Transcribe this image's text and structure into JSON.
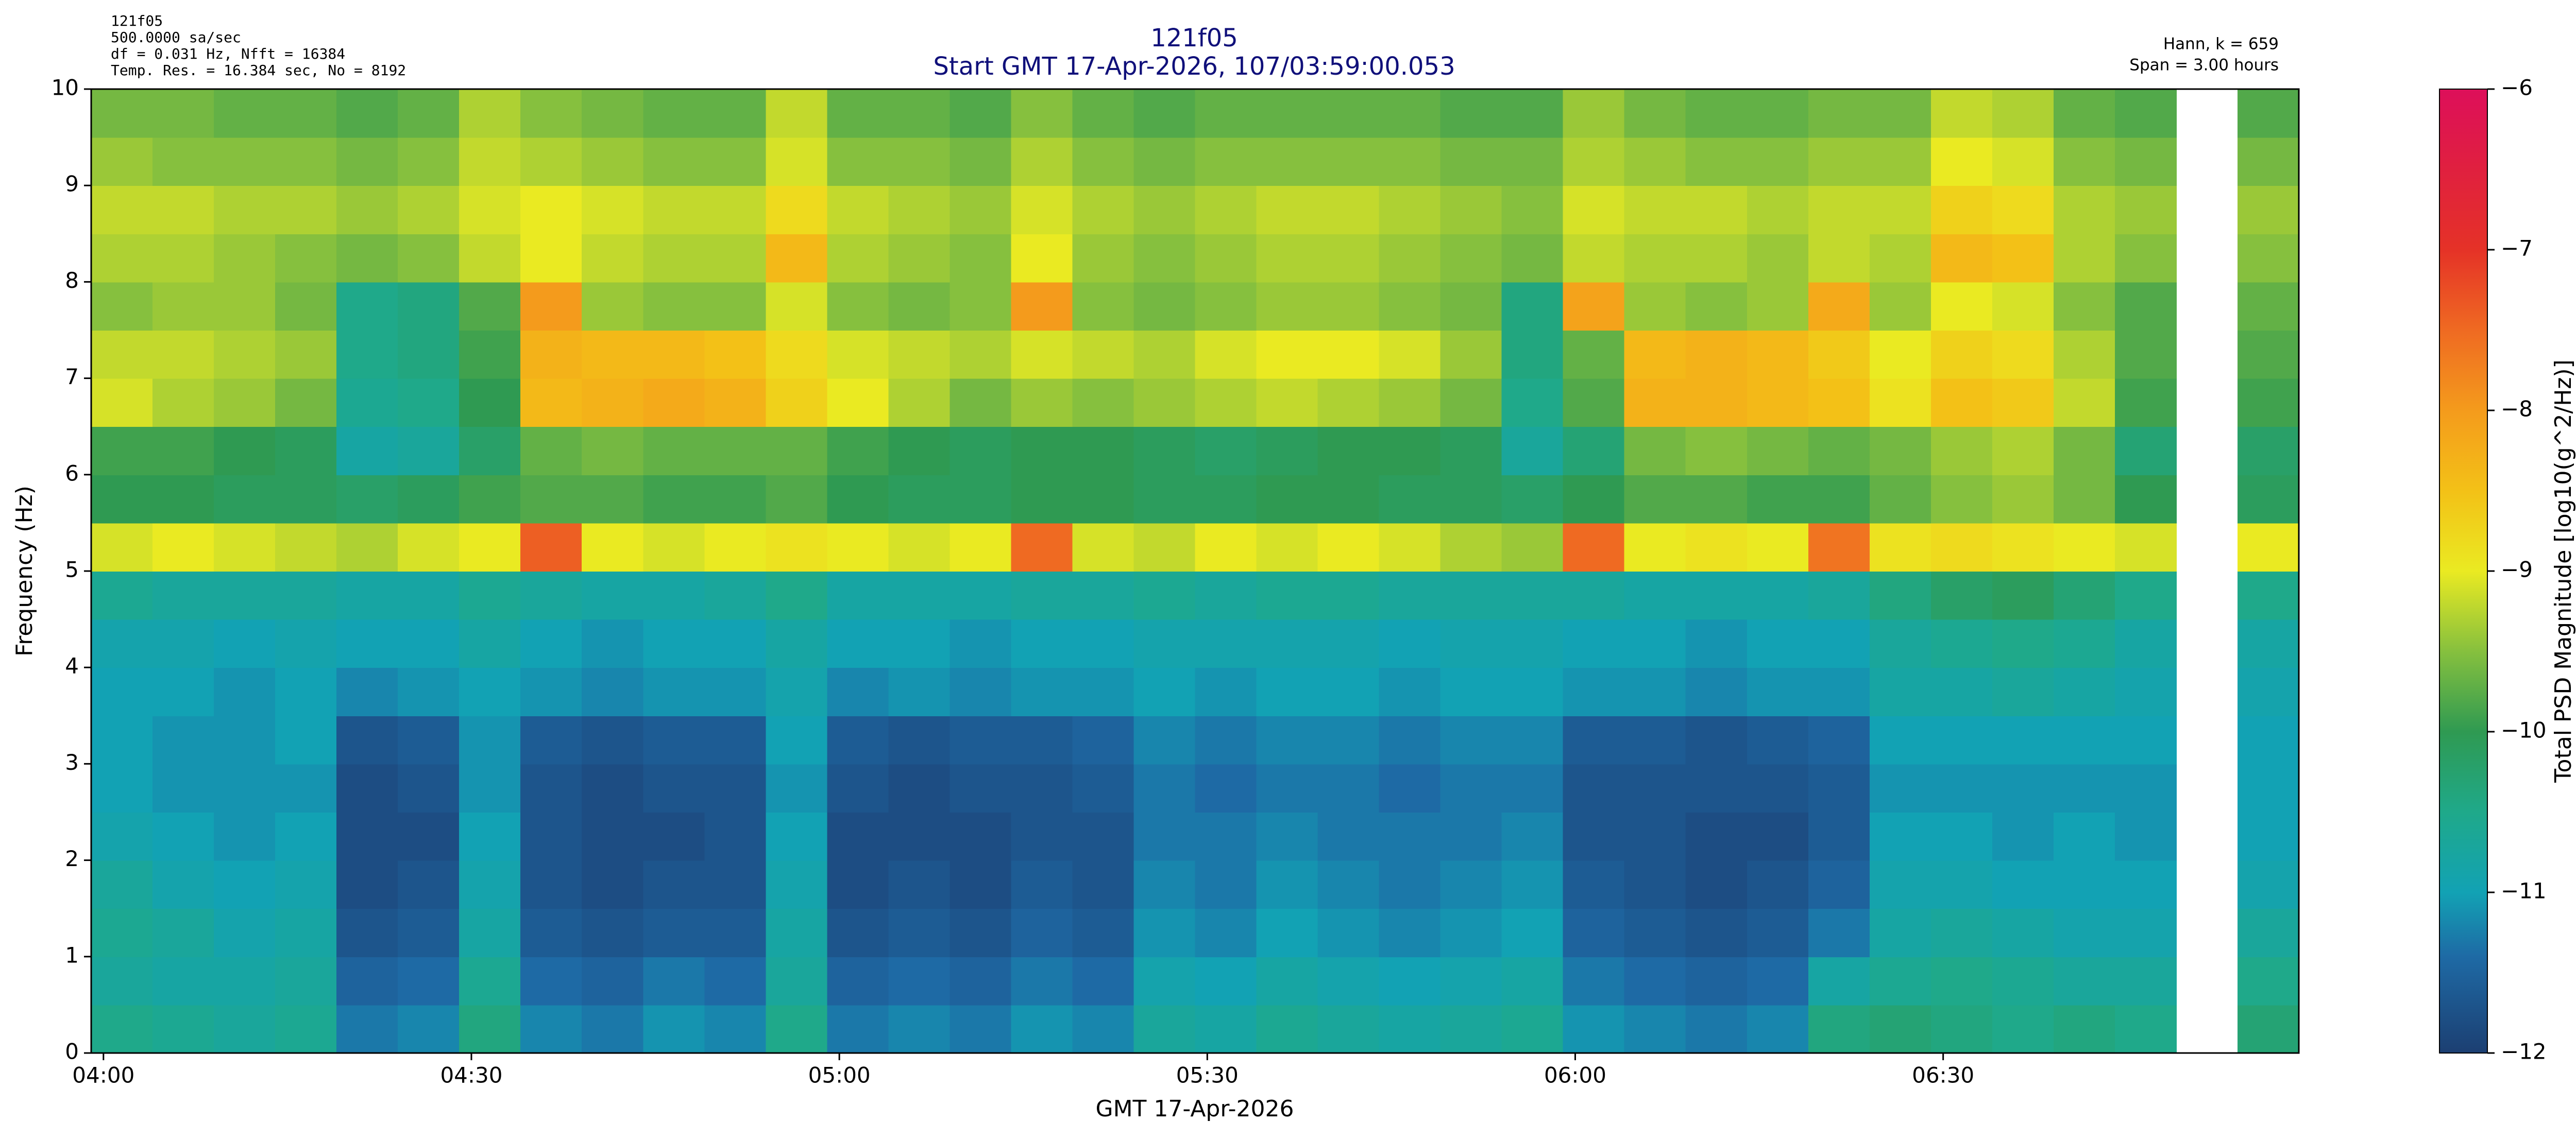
{
  "chart_data": {
    "type": "spectrogram",
    "title": "121f05",
    "subtitle": "Start GMT 17-Apr-2026, 107/03:59:00.053",
    "notes_left": [
      "121f05",
      "500.0000 sa/sec",
      "df = 0.031 Hz,  Nfft = 16384",
      "Temp. Res. = 16.384 sec, No = 8192"
    ],
    "notes_right": [
      "Hann, k = 659",
      "Span = 3.00 hours"
    ],
    "xlabel": "GMT 17-Apr-2026",
    "ylabel": "Frequency (Hz)",
    "colorbar_label": "Total PSD Magnitude [log10(g^2/Hz)]",
    "xlim": [
      239,
      419
    ],
    "xticks": [
      {
        "value": 240,
        "label": "04:00"
      },
      {
        "value": 270,
        "label": "04:30"
      },
      {
        "value": 300,
        "label": "05:00"
      },
      {
        "value": 330,
        "label": "05:30"
      },
      {
        "value": 360,
        "label": "06:00"
      },
      {
        "value": 390,
        "label": "06:30"
      }
    ],
    "ylim": [
      0,
      10
    ],
    "yticks": [
      0,
      1,
      2,
      3,
      4,
      5,
      6,
      7,
      8,
      9,
      10
    ],
    "zlim": [
      -12,
      -6
    ],
    "zticks": [
      {
        "value": -12,
        "label": "−12"
      },
      {
        "value": -11,
        "label": "−11"
      },
      {
        "value": -10,
        "label": "−10"
      },
      {
        "value": -9,
        "label": "−9"
      },
      {
        "value": -8,
        "label": "−8"
      },
      {
        "value": -7,
        "label": "−7"
      },
      {
        "value": -6,
        "label": "−6"
      }
    ],
    "colormap": [
      {
        "value": -12,
        "color": "#1c3f72"
      },
      {
        "value": -11.4,
        "color": "#1e6aa5"
      },
      {
        "value": -11,
        "color": "#12a2b4"
      },
      {
        "value": -10.5,
        "color": "#1fa98a"
      },
      {
        "value": -10,
        "color": "#2f9a52"
      },
      {
        "value": -9.5,
        "color": "#86c03e"
      },
      {
        "value": -9,
        "color": "#eaea22"
      },
      {
        "value": -8.5,
        "color": "#f3c117"
      },
      {
        "value": -8,
        "color": "#f49b1c"
      },
      {
        "value": -7.5,
        "color": "#ef6a22"
      },
      {
        "value": -7,
        "color": "#e53227"
      },
      {
        "value": -6.5,
        "color": "#e0203f"
      },
      {
        "value": -6,
        "color": "#dd0f5a"
      }
    ],
    "xbins": [
      239,
      244,
      249,
      254,
      259,
      264,
      269,
      274,
      279,
      284,
      289,
      294,
      299,
      304,
      309,
      314,
      319,
      324,
      329,
      334,
      339,
      344,
      349,
      354,
      359,
      364,
      369,
      374,
      379,
      384,
      389,
      394,
      399,
      404,
      409,
      414,
      419
    ],
    "ybins": [
      0,
      0.5,
      1,
      1.5,
      2,
      2.5,
      3,
      3.5,
      4,
      4.5,
      5,
      5.5,
      6,
      6.5,
      7,
      7.5,
      8,
      8.5,
      9,
      9.5,
      10
    ],
    "z": [
      [
        -10.5,
        -10.6,
        -10.7,
        -10.6,
        -11.3,
        -11.2,
        -10.4,
        -11.2,
        -11.3,
        -11.1,
        -11.2,
        -10.5,
        -11.3,
        -11.2,
        -11.3,
        -11.1,
        -11.2,
        -10.7,
        -10.8,
        -10.6,
        -10.7,
        -10.8,
        -10.7,
        -10.6,
        -11.1,
        -11.2,
        -11.3,
        -11.2,
        -10.4,
        -10.3,
        -10.4,
        -10.5,
        -10.4,
        -10.5,
        null,
        -10.3
      ],
      [
        -10.7,
        -10.8,
        -10.8,
        -10.7,
        -11.5,
        -11.4,
        -10.6,
        -11.4,
        -11.5,
        -11.3,
        -11.4,
        -10.7,
        -11.5,
        -11.4,
        -11.5,
        -11.3,
        -11.4,
        -10.9,
        -11.0,
        -10.8,
        -10.9,
        -11.0,
        -10.9,
        -10.8,
        -11.3,
        -11.4,
        -11.5,
        -11.4,
        -10.8,
        -10.6,
        -10.5,
        -10.6,
        -10.7,
        -10.7,
        null,
        -10.5
      ],
      [
        -10.6,
        -10.7,
        -10.9,
        -10.8,
        -11.7,
        -11.6,
        -10.8,
        -11.6,
        -11.7,
        -11.6,
        -11.6,
        -10.8,
        -11.7,
        -11.6,
        -11.7,
        -11.5,
        -11.6,
        -11.1,
        -11.2,
        -11.0,
        -11.1,
        -11.2,
        -11.1,
        -11.0,
        -11.5,
        -11.6,
        -11.7,
        -11.6,
        -11.3,
        -10.8,
        -10.7,
        -10.8,
        -10.9,
        -10.9,
        null,
        -10.7
      ],
      [
        -10.7,
        -10.9,
        -11.0,
        -10.9,
        -11.8,
        -11.7,
        -10.9,
        -11.7,
        -11.8,
        -11.7,
        -11.7,
        -10.9,
        -11.8,
        -11.7,
        -11.8,
        -11.6,
        -11.7,
        -11.2,
        -11.3,
        -11.1,
        -11.2,
        -11.3,
        -11.2,
        -11.1,
        -11.6,
        -11.7,
        -11.8,
        -11.7,
        -11.5,
        -10.9,
        -10.9,
        -11.0,
        -11.0,
        -11.0,
        null,
        -10.9
      ],
      [
        -10.9,
        -11.0,
        -11.1,
        -11.0,
        -11.8,
        -11.8,
        -11.0,
        -11.7,
        -11.8,
        -11.8,
        -11.7,
        -11.0,
        -11.8,
        -11.8,
        -11.8,
        -11.7,
        -11.7,
        -11.3,
        -11.3,
        -11.2,
        -11.3,
        -11.3,
        -11.3,
        -11.2,
        -11.7,
        -11.7,
        -11.8,
        -11.8,
        -11.6,
        -11.0,
        -11.0,
        -11.1,
        -11.0,
        -11.1,
        null,
        -11.0
      ],
      [
        -11.0,
        -11.1,
        -11.1,
        -11.1,
        -11.8,
        -11.7,
        -11.1,
        -11.7,
        -11.8,
        -11.7,
        -11.7,
        -11.1,
        -11.7,
        -11.8,
        -11.7,
        -11.7,
        -11.6,
        -11.3,
        -11.4,
        -11.3,
        -11.3,
        -11.4,
        -11.3,
        -11.3,
        -11.7,
        -11.7,
        -11.7,
        -11.7,
        -11.6,
        -11.1,
        -11.1,
        -11.1,
        -11.1,
        -11.1,
        null,
        -11.0
      ],
      [
        -11.0,
        -11.1,
        -11.1,
        -11.0,
        -11.7,
        -11.6,
        -11.1,
        -11.6,
        -11.7,
        -11.6,
        -11.6,
        -11.0,
        -11.6,
        -11.7,
        -11.6,
        -11.6,
        -11.5,
        -11.2,
        -11.3,
        -11.2,
        -11.2,
        -11.3,
        -11.2,
        -11.2,
        -11.6,
        -11.6,
        -11.7,
        -11.6,
        -11.5,
        -11.0,
        -11.0,
        -11.0,
        -11.0,
        -11.0,
        null,
        -11.0
      ],
      [
        -11.0,
        -11.0,
        -11.1,
        -11.0,
        -11.2,
        -11.1,
        -11.0,
        -11.1,
        -11.2,
        -11.1,
        -11.1,
        -10.9,
        -11.2,
        -11.1,
        -11.2,
        -11.1,
        -11.1,
        -11.0,
        -11.1,
        -11.0,
        -11.0,
        -11.1,
        -11.0,
        -11.0,
        -11.1,
        -11.1,
        -11.2,
        -11.1,
        -11.1,
        -10.8,
        -10.8,
        -10.7,
        -10.8,
        -10.9,
        null,
        -10.9
      ],
      [
        -10.9,
        -10.9,
        -11.0,
        -10.9,
        -11.0,
        -11.0,
        -10.8,
        -11.0,
        -11.1,
        -11.0,
        -11.0,
        -10.8,
        -11.0,
        -11.0,
        -11.1,
        -11.0,
        -11.0,
        -10.9,
        -10.9,
        -10.9,
        -10.9,
        -11.0,
        -10.9,
        -10.9,
        -11.0,
        -11.0,
        -11.1,
        -11.0,
        -11.0,
        -10.7,
        -10.6,
        -10.5,
        -10.6,
        -10.8,
        null,
        -10.8
      ],
      [
        -10.6,
        -10.7,
        -10.7,
        -10.7,
        -10.8,
        -10.8,
        -10.6,
        -10.7,
        -10.8,
        -10.8,
        -10.7,
        -10.5,
        -10.8,
        -10.8,
        -10.8,
        -10.7,
        -10.7,
        -10.6,
        -10.7,
        -10.6,
        -10.6,
        -10.7,
        -10.7,
        -10.7,
        -10.7,
        -10.8,
        -10.8,
        -10.8,
        -10.7,
        -10.4,
        -10.2,
        -10.1,
        -10.3,
        -10.5,
        null,
        -10.5
      ],
      [
        -9.1,
        -9.0,
        -9.1,
        -9.2,
        -9.3,
        -9.1,
        -9.0,
        -7.4,
        -9.0,
        -9.1,
        -9.0,
        -8.9,
        -9.0,
        -9.1,
        -9.0,
        -7.5,
        -9.1,
        -9.2,
        -9.0,
        -9.1,
        -9.0,
        -9.1,
        -9.3,
        -9.4,
        -7.5,
        -9.0,
        -8.9,
        -9.0,
        -7.6,
        -8.9,
        -8.8,
        -8.9,
        -9.0,
        -9.1,
        null,
        -9.0
      ],
      [
        -10.0,
        -10.0,
        -10.1,
        -10.1,
        -10.2,
        -10.1,
        -9.9,
        -9.8,
        -9.8,
        -9.9,
        -9.9,
        -9.8,
        -10.0,
        -10.1,
        -10.1,
        -10.0,
        -10.0,
        -10.1,
        -10.1,
        -10.0,
        -10.0,
        -10.1,
        -10.1,
        -10.2,
        -10.0,
        -9.8,
        -9.8,
        -9.9,
        -9.9,
        -9.7,
        -9.5,
        -9.4,
        -9.6,
        -10.0,
        null,
        -10.1
      ],
      [
        -9.9,
        -9.9,
        -10.0,
        -10.1,
        -10.8,
        -10.7,
        -10.2,
        -9.7,
        -9.6,
        -9.7,
        -9.7,
        -9.7,
        -9.9,
        -10.0,
        -10.1,
        -10.0,
        -10.0,
        -10.1,
        -10.2,
        -10.1,
        -10.0,
        -10.0,
        -10.1,
        -10.7,
        -10.3,
        -9.6,
        -9.5,
        -9.6,
        -9.7,
        -9.6,
        -9.4,
        -9.3,
        -9.6,
        -10.3,
        null,
        -10.2
      ],
      [
        -9.1,
        -9.3,
        -9.4,
        -9.6,
        -10.6,
        -10.5,
        -10.0,
        -8.4,
        -8.3,
        -8.2,
        -8.3,
        -8.7,
        -9.0,
        -9.3,
        -9.6,
        -9.4,
        -9.5,
        -9.4,
        -9.3,
        -9.2,
        -9.3,
        -9.4,
        -9.6,
        -10.5,
        -9.8,
        -8.3,
        -8.3,
        -8.4,
        -8.5,
        -8.9,
        -8.5,
        -8.6,
        -9.2,
        -9.9,
        null,
        -9.9
      ],
      [
        -9.2,
        -9.2,
        -9.3,
        -9.4,
        -10.5,
        -10.4,
        -9.9,
        -8.3,
        -8.4,
        -8.4,
        -8.5,
        -8.8,
        -9.1,
        -9.2,
        -9.3,
        -9.1,
        -9.2,
        -9.3,
        -9.1,
        -9.0,
        -9.0,
        -9.1,
        -9.4,
        -10.4,
        -9.7,
        -8.4,
        -8.3,
        -8.4,
        -8.6,
        -9.0,
        -8.7,
        -8.8,
        -9.3,
        -9.8,
        null,
        -9.8
      ],
      [
        -9.5,
        -9.4,
        -9.4,
        -9.6,
        -10.5,
        -10.4,
        -9.8,
        -8.0,
        -9.4,
        -9.5,
        -9.5,
        -9.1,
        -9.5,
        -9.6,
        -9.5,
        -8.0,
        -9.5,
        -9.6,
        -9.5,
        -9.4,
        -9.4,
        -9.5,
        -9.6,
        -10.4,
        -8.1,
        -9.4,
        -9.5,
        -9.4,
        -8.2,
        -9.4,
        -9.0,
        -9.1,
        -9.5,
        -9.8,
        null,
        -9.7
      ],
      [
        -9.3,
        -9.3,
        -9.4,
        -9.5,
        -9.6,
        -9.5,
        -9.2,
        -9.0,
        -9.2,
        -9.3,
        -9.3,
        -8.4,
        -9.3,
        -9.4,
        -9.5,
        -9.0,
        -9.4,
        -9.5,
        -9.4,
        -9.3,
        -9.3,
        -9.4,
        -9.5,
        -9.6,
        -9.2,
        -9.3,
        -9.3,
        -9.4,
        -9.2,
        -9.3,
        -8.4,
        -8.5,
        -9.3,
        -9.5,
        null,
        -9.5
      ],
      [
        -9.2,
        -9.2,
        -9.3,
        -9.3,
        -9.4,
        -9.3,
        -9.1,
        -9.0,
        -9.1,
        -9.2,
        -9.2,
        -8.8,
        -9.2,
        -9.3,
        -9.4,
        -9.1,
        -9.3,
        -9.4,
        -9.3,
        -9.2,
        -9.2,
        -9.3,
        -9.4,
        -9.5,
        -9.1,
        -9.2,
        -9.2,
        -9.3,
        -9.2,
        -9.2,
        -8.7,
        -8.8,
        -9.3,
        -9.4,
        null,
        -9.4
      ],
      [
        -9.4,
        -9.5,
        -9.5,
        -9.5,
        -9.6,
        -9.5,
        -9.2,
        -9.3,
        -9.4,
        -9.5,
        -9.5,
        -9.1,
        -9.5,
        -9.5,
        -9.6,
        -9.3,
        -9.5,
        -9.6,
        -9.5,
        -9.5,
        -9.5,
        -9.5,
        -9.6,
        -9.6,
        -9.3,
        -9.4,
        -9.5,
        -9.5,
        -9.4,
        -9.4,
        -9.0,
        -9.1,
        -9.5,
        -9.6,
        null,
        -9.6
      ],
      [
        -9.6,
        -9.6,
        -9.7,
        -9.7,
        -9.8,
        -9.7,
        -9.3,
        -9.5,
        -9.6,
        -9.7,
        -9.7,
        -9.2,
        -9.7,
        -9.7,
        -9.8,
        -9.5,
        -9.7,
        -9.8,
        -9.7,
        -9.7,
        -9.7,
        -9.7,
        -9.8,
        -9.8,
        -9.4,
        -9.6,
        -9.7,
        -9.7,
        -9.6,
        -9.6,
        -9.2,
        -9.3,
        -9.7,
        -9.8,
        null,
        -9.8
      ]
    ]
  }
}
